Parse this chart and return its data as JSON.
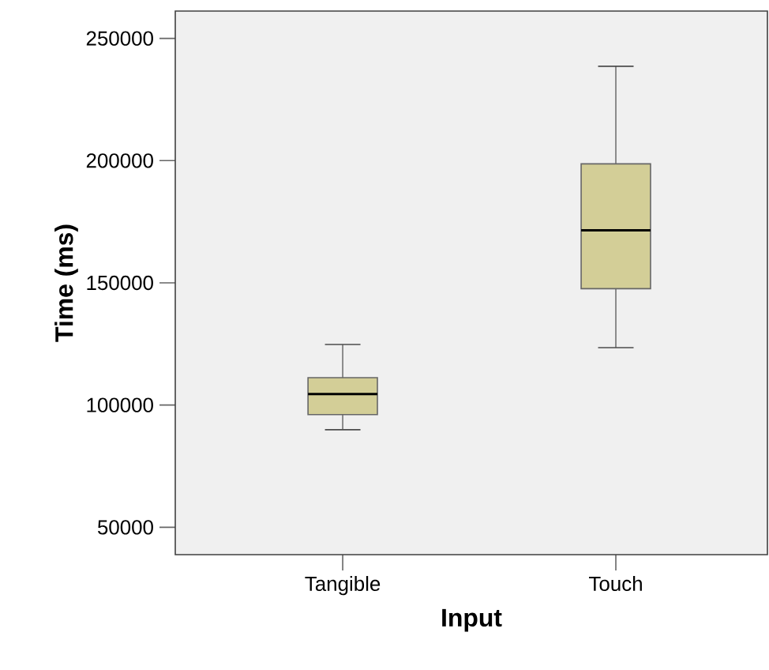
{
  "chart_data": {
    "type": "box",
    "xlabel": "Input",
    "ylabel": "Time (ms)",
    "categories": [
      "Tangible",
      "Touch"
    ],
    "color": "#d3ce97",
    "boxes": [
      {
        "low": 89900,
        "q1": 96100,
        "median": 104500,
        "q3": 111200,
        "high": 124800
      },
      {
        "low": 123500,
        "q1": 147600,
        "median": 171500,
        "q3": 198700,
        "high": 238600
      }
    ],
    "ylim": [
      38800,
      261200
    ],
    "yticks": [
      50000,
      100000,
      150000,
      200000,
      250000
    ],
    "grid": false
  }
}
